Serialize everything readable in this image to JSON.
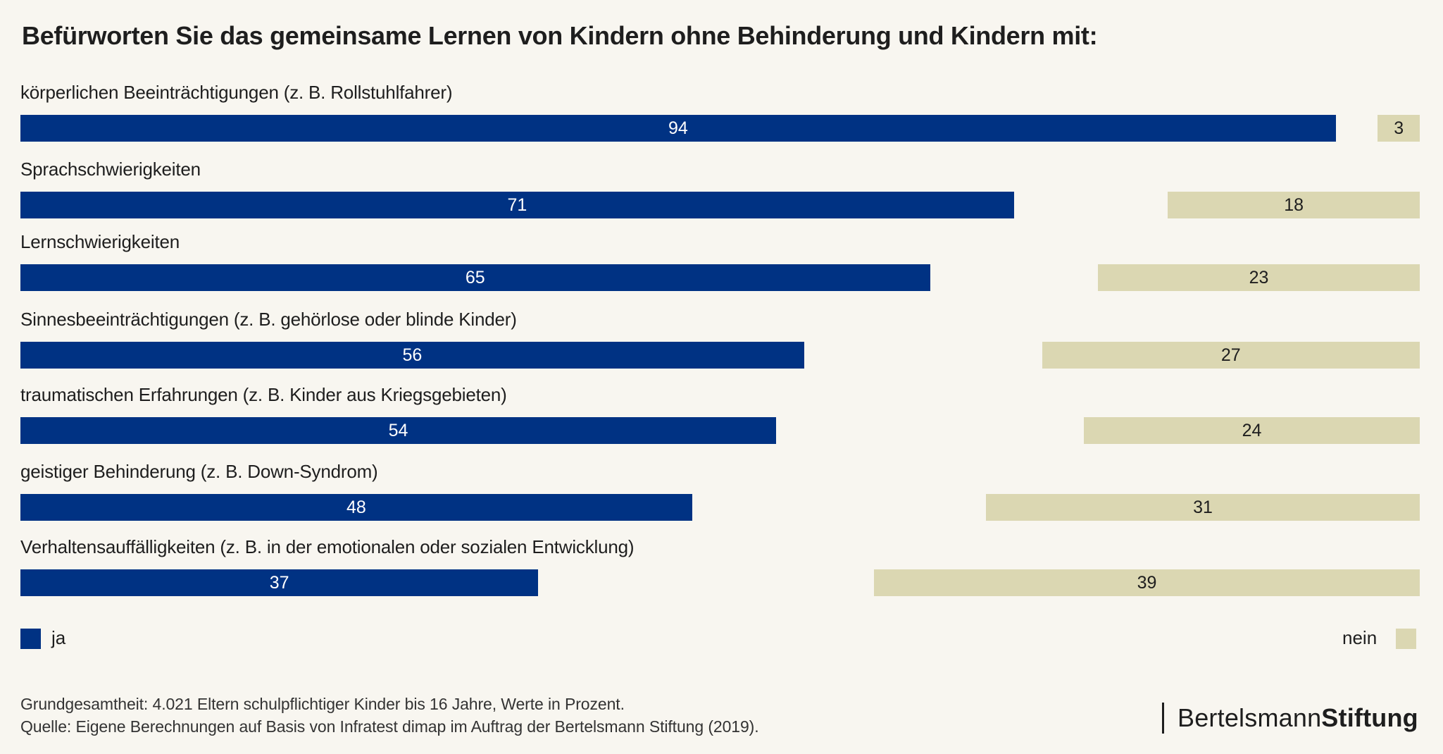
{
  "colors": {
    "ja": "#003283",
    "nein": "#dbd7b2",
    "background": "#f8f6f0"
  },
  "chart_data": {
    "type": "bar",
    "orientation": "horizontal",
    "title": "Befürworten Sie das gemeinsame Lernen von Kindern ohne Behinderung und Kindern mit:",
    "categories": [
      "körperlichen Beeinträchtigungen (z. B. Rollstuhlfahrer)",
      "Sprachschwierigkeiten",
      "Lernschwierigkeiten",
      "Sinnesbeeinträchtigungen (z. B. gehörlose oder blinde Kinder)",
      "traumatischen Erfahrungen (z. B. Kinder aus Kriegsgebieten)",
      "geistiger Behinderung (z. B. Down-Syndrom)",
      "Verhaltensauffälligkeiten (z. B. in der emotionalen oder sozialen Entwicklung)"
    ],
    "series": [
      {
        "name": "ja",
        "values": [
          94,
          71,
          65,
          56,
          54,
          48,
          37
        ],
        "align": "left"
      },
      {
        "name": "nein",
        "values": [
          3,
          18,
          23,
          27,
          24,
          31,
          39
        ],
        "align": "right"
      }
    ],
    "xlim": [
      0,
      100
    ],
    "unit": "Prozent",
    "grid": false,
    "legend": [
      {
        "label": "ja",
        "position": "bottom-left"
      },
      {
        "label": "nein",
        "position": "bottom-right"
      }
    ]
  },
  "footer": {
    "base": "Grundgesamtheit: 4.021 Eltern schulpflichtiger Kinder bis 16 Jahre, Werte in Prozent.",
    "source": "Quelle: Eigene Berechnungen auf Basis von Infratest dimap im Auftrag der Bertelsmann Stiftung (2019)."
  },
  "logo": {
    "regular": "Bertelsmann",
    "bold": "Stiftung"
  }
}
